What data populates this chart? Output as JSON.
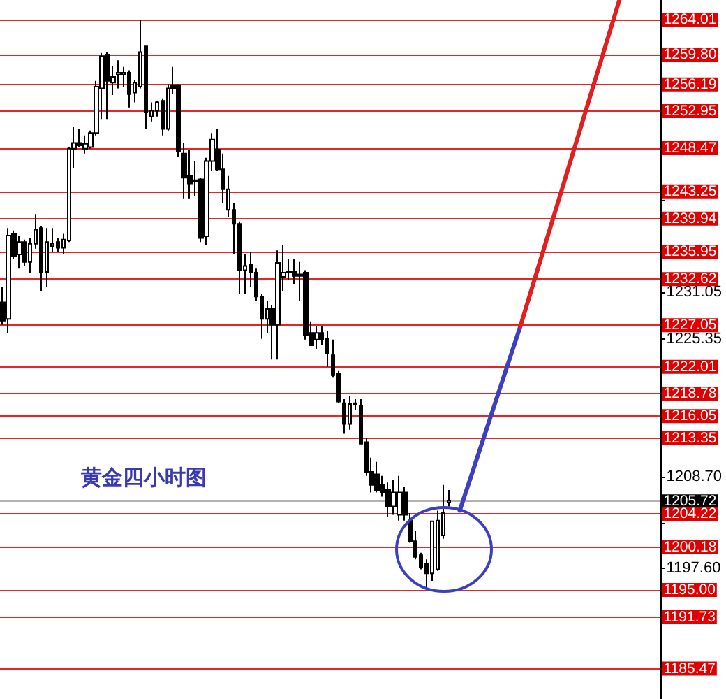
{
  "chart_data": {
    "type": "candlestick",
    "categories": [
      null,
      null,
      null,
      null,
      null,
      null,
      null,
      null,
      null,
      null,
      null,
      null,
      null,
      null,
      null,
      null,
      null,
      null,
      null,
      null,
      null,
      null,
      null,
      null,
      null,
      null,
      null,
      null,
      null,
      null,
      null,
      null,
      null,
      null,
      null,
      null,
      null,
      null,
      null,
      null,
      null,
      null,
      null,
      null,
      null,
      null,
      null,
      null,
      null,
      null,
      null,
      null,
      null,
      null,
      null,
      null,
      null,
      null,
      null,
      null,
      null,
      null,
      null,
      null,
      null,
      null,
      null,
      null,
      null,
      null,
      null,
      null,
      null,
      null,
      null,
      null,
      null,
      null,
      null,
      null,
      null,
      null,
      null,
      null,
      null,
      null,
      null,
      null,
      null,
      null,
      null,
      null,
      null,
      null,
      null,
      null,
      null,
      null,
      null,
      null,
      null,
      null,
      null,
      null,
      null,
      null,
      null,
      null,
      null,
      null,
      null,
      null,
      null,
      null,
      null,
      null,
      null,
      null,
      null,
      null
    ],
    "series": [
      {
        "color": "#000000",
        "ohlc": [
          [
            1229.8,
            1231.7,
            1227.1,
            1227.6
          ],
          [
            1227.8,
            1238.8,
            1226.1,
            1237.9
          ],
          [
            1238.1,
            1238.5,
            1235.1,
            1235.4
          ],
          [
            1235.6,
            1237.9,
            1233.9,
            1237.1
          ],
          [
            1237.1,
            1237.4,
            1234.2,
            1234.7
          ],
          [
            1234.7,
            1237.6,
            1233.4,
            1236.9
          ],
          [
            1236.9,
            1240.5,
            1236.3,
            1238.6
          ],
          [
            1238.8,
            1239.0,
            1231.2,
            1233.5
          ],
          [
            1233.5,
            1238.8,
            1231.7,
            1237.1
          ],
          [
            1236.6,
            1238.8,
            1235.9,
            1236.9
          ],
          [
            1237.1,
            1237.6,
            1235.9,
            1236.4
          ],
          [
            1236.4,
            1238.1,
            1235.6,
            1237.4
          ],
          [
            1237.3,
            1248.6,
            1237.1,
            1248.4
          ],
          [
            1248.4,
            1251.0,
            1246.1,
            1249.1
          ],
          [
            1249.1,
            1250.8,
            1248.6,
            1248.8
          ],
          [
            1248.4,
            1250.0,
            1247.8,
            1249.0
          ],
          [
            1248.6,
            1250.6,
            1248.4,
            1250.3
          ],
          [
            1250.3,
            1256.6,
            1250.0,
            1255.9
          ],
          [
            1255.7,
            1260.0,
            1252.0,
            1259.6
          ],
          [
            1259.8,
            1260.1,
            1252.0,
            1256.6
          ],
          [
            1256.4,
            1258.4,
            1254.9,
            1257.1
          ],
          [
            1257.4,
            1259.1,
            1255.7,
            1257.6
          ],
          [
            1257.4,
            1258.3,
            1255.9,
            1257.6
          ],
          [
            1257.6,
            1257.9,
            1253.4,
            1255.0
          ],
          [
            1255.2,
            1256.7,
            1254.0,
            1256.4
          ],
          [
            1255.9,
            1264.0,
            1255.7,
            1260.1
          ],
          [
            1260.8,
            1260.8,
            1250.8,
            1252.8
          ],
          [
            1252.3,
            1254.0,
            1251.7,
            1253.0
          ],
          [
            1253.0,
            1254.2,
            1252.3,
            1254.0
          ],
          [
            1254.2,
            1254.5,
            1250.0,
            1250.8
          ],
          [
            1250.8,
            1256.2,
            1250.6,
            1255.7
          ],
          [
            1256.1,
            1258.3,
            1255.0,
            1255.7
          ],
          [
            1256.1,
            1256.2,
            1247.4,
            1248.1
          ],
          [
            1247.8,
            1249.1,
            1242.4,
            1244.9
          ],
          [
            1245.1,
            1248.3,
            1242.4,
            1244.2
          ],
          [
            1244.6,
            1246.9,
            1242.7,
            1244.4
          ],
          [
            1244.7,
            1244.9,
            1237.1,
            1237.6
          ],
          [
            1237.8,
            1247.3,
            1236.8,
            1246.9
          ],
          [
            1246.9,
            1250.3,
            1245.7,
            1249.5
          ],
          [
            1248.3,
            1250.8,
            1245.7,
            1245.9
          ],
          [
            1245.9,
            1247.8,
            1241.8,
            1243.5
          ],
          [
            1241.0,
            1245.1,
            1240.1,
            1243.5
          ],
          [
            1241.0,
            1241.8,
            1235.6,
            1239.3
          ],
          [
            1239.3,
            1239.6,
            1230.8,
            1233.7
          ],
          [
            1233.7,
            1235.6,
            1230.8,
            1234.2
          ],
          [
            1234.4,
            1235.9,
            1231.7,
            1233.4
          ],
          [
            1233.4,
            1233.9,
            1230.0,
            1230.5
          ],
          [
            1230.5,
            1230.8,
            1225.4,
            1227.8
          ],
          [
            1227.8,
            1230.0,
            1226.1,
            1229.0
          ],
          [
            1229.0,
            1229.5,
            1222.9,
            1227.1
          ],
          [
            1227.1,
            1236.1,
            1222.9,
            1234.6
          ],
          [
            1232.9,
            1236.8,
            1231.2,
            1233.4
          ],
          [
            1233.4,
            1235.1,
            1232.5,
            1233.5
          ],
          [
            1233.5,
            1235.1,
            1232.0,
            1233.0
          ],
          [
            1233.2,
            1234.7,
            1230.0,
            1233.0
          ],
          [
            1233.4,
            1233.7,
            1225.3,
            1225.8
          ],
          [
            1226.1,
            1227.5,
            1224.6,
            1224.6
          ],
          [
            1225.3,
            1226.9,
            1224.1,
            1226.1
          ],
          [
            1226.1,
            1226.9,
            1224.6,
            1225.3
          ],
          [
            1225.4,
            1226.3,
            1222.0,
            1223.6
          ],
          [
            1223.4,
            1225.3,
            1220.7,
            1221.0
          ],
          [
            1221.2,
            1221.5,
            1217.6,
            1217.8
          ],
          [
            1217.6,
            1218.1,
            1213.9,
            1215.1
          ],
          [
            1215.1,
            1218.5,
            1214.4,
            1217.5
          ],
          [
            1217.5,
            1218.1,
            1216.8,
            1217.6
          ],
          [
            1217.3,
            1218.1,
            1212.7,
            1212.7
          ],
          [
            1212.9,
            1213.4,
            1208.8,
            1209.2
          ],
          [
            1209.3,
            1211.0,
            1206.8,
            1207.7
          ],
          [
            1209.0,
            1210.5,
            1206.8,
            1207.1
          ],
          [
            1207.7,
            1208.8,
            1206.3,
            1206.8
          ],
          [
            1207.1,
            1208.0,
            1203.8,
            1205.1
          ],
          [
            1205.1,
            1208.3,
            1204.1,
            1206.8
          ],
          [
            1204.1,
            1208.8,
            1203.4,
            1206.8
          ],
          [
            1206.8,
            1207.5,
            1203.4,
            1204.1
          ],
          [
            1203.4,
            1204.3,
            1200.7,
            1200.9
          ],
          [
            1200.9,
            1202.1,
            1198.7,
            1199.0
          ],
          [
            1199.2,
            1199.5,
            1197.5,
            1197.7
          ],
          [
            1198.2,
            1198.7,
            1195.3,
            1197.0
          ],
          [
            1197.0,
            1203.4,
            1196.1,
            1203.3
          ],
          [
            1197.5,
            1204.6,
            1197.3,
            1203.4
          ],
          [
            1201.6,
            1207.7,
            1201.2,
            1204.3
          ],
          [
            1205.6,
            1207.1,
            1205.1,
            1205.8
          ],
          null,
          null,
          null,
          null,
          null,
          null,
          null,
          null,
          null,
          null,
          null,
          null,
          null,
          null,
          null,
          null,
          null,
          null,
          null,
          null,
          null,
          null,
          null,
          null,
          null,
          null,
          null,
          null,
          null,
          null,
          null,
          null,
          null,
          null,
          null,
          null,
          null,
          null
        ]
      },
      {
        "type": "line",
        "color": "#3c40c0",
        "values": [
          null,
          null,
          null,
          null,
          null,
          null,
          null,
          null,
          null,
          null,
          null,
          null,
          null,
          null,
          null,
          null,
          null,
          null,
          null,
          null,
          null,
          null,
          null,
          null,
          null,
          null,
          null,
          null,
          null,
          null,
          null,
          null,
          null,
          null,
          null,
          null,
          null,
          null,
          null,
          null,
          null,
          null,
          null,
          null,
          null,
          null,
          null,
          null,
          null,
          null,
          null,
          null,
          null,
          null,
          null,
          null,
          null,
          null,
          null,
          null,
          null,
          null,
          null,
          null,
          null,
          null,
          null,
          null,
          null,
          null,
          null,
          null,
          null,
          null,
          null,
          null,
          null,
          null,
          null,
          null,
          null,
          null,
          null,
          1204.6,
          null,
          null,
          null,
          null,
          null,
          null,
          null,
          null,
          null,
          null,
          1226.9,
          null,
          null,
          null,
          null,
          null,
          null,
          null,
          null,
          null,
          null,
          null,
          null,
          null,
          null,
          null,
          null,
          null,
          null,
          null,
          null,
          null,
          null,
          null,
          null,
          null
        ]
      },
      {
        "type": "line",
        "color": "#e02020",
        "values": [
          null,
          null,
          null,
          null,
          null,
          null,
          null,
          null,
          null,
          null,
          null,
          null,
          null,
          null,
          null,
          null,
          null,
          null,
          null,
          null,
          null,
          null,
          null,
          null,
          null,
          null,
          null,
          null,
          null,
          null,
          null,
          null,
          null,
          null,
          null,
          null,
          null,
          null,
          null,
          null,
          null,
          null,
          null,
          null,
          null,
          null,
          null,
          null,
          null,
          null,
          null,
          null,
          null,
          null,
          null,
          null,
          null,
          null,
          null,
          null,
          null,
          null,
          null,
          null,
          null,
          null,
          null,
          null,
          null,
          null,
          null,
          null,
          null,
          null,
          null,
          null,
          null,
          null,
          null,
          null,
          null,
          null,
          null,
          null,
          null,
          null,
          null,
          null,
          null,
          null,
          null,
          null,
          null,
          null,
          1226.9,
          null,
          null,
          null,
          null,
          null,
          null,
          null,
          null,
          null,
          null,
          null,
          null,
          null,
          null,
          null,
          null,
          null,
          1266.4,
          null,
          null,
          null,
          null,
          null,
          null,
          null
        ]
      }
    ],
    "ylim": [
      1181.8,
      1266.4
    ],
    "yticks": [
      {
        "value": 1242.15,
        "label": null
      },
      1231.05,
      1225.35,
      {
        "value": 1208.7,
        "label": "1208.70"
      },
      {
        "value": 1203.15,
        "label": null
      },
      {
        "value": 1197.6,
        "label": "1197.60"
      }
    ],
    "tick_labels": "y",
    "grid": false,
    "ref_lines": [
      {
        "axis": "y",
        "value": 1264.01,
        "label": "1264.01",
        "color": "#e00000"
      },
      {
        "axis": "y",
        "value": 1259.8,
        "label": "1259.80",
        "color": "#e00000"
      },
      {
        "axis": "y",
        "value": 1256.19,
        "label": "1256.19",
        "color": "#e00000"
      },
      {
        "axis": "y",
        "value": 1252.95,
        "label": "1252.95",
        "color": "#e00000"
      },
      {
        "axis": "y",
        "value": 1248.47,
        "label": "1248.47",
        "color": "#e00000"
      },
      {
        "axis": "y",
        "value": 1243.25,
        "label": "1243.25",
        "color": "#e00000"
      },
      {
        "axis": "y",
        "value": 1239.94,
        "label": "1239.94",
        "color": "#e00000"
      },
      {
        "axis": "y",
        "value": 1235.95,
        "label": "1235.95",
        "color": "#e00000"
      },
      {
        "axis": "y",
        "value": 1232.62,
        "label": "1232.62",
        "color": "#e00000"
      },
      {
        "axis": "y",
        "value": 1227.05,
        "label": "1227.05",
        "color": "#e00000"
      },
      {
        "axis": "y",
        "value": 1222.01,
        "label": "1222.01",
        "color": "#e00000"
      },
      {
        "axis": "y",
        "value": 1218.78,
        "label": "1218.78",
        "color": "#e00000"
      },
      {
        "axis": "y",
        "value": 1216.05,
        "label": "1216.05",
        "color": "#e00000"
      },
      {
        "axis": "y",
        "value": 1213.35,
        "label": "1213.35",
        "color": "#e00000"
      },
      {
        "axis": "y",
        "value": 1205.72,
        "label": "1205.72",
        "color": "#000000"
      },
      {
        "axis": "y",
        "value": 1204.22,
        "label": "1204.22",
        "color": "#e00000"
      },
      {
        "axis": "y",
        "value": 1200.18,
        "label": "1200.18",
        "color": "#e00000"
      },
      {
        "axis": "y",
        "value": 1195.0,
        "label": "1195.00",
        "color": "#e00000"
      },
      {
        "axis": "y",
        "value": 1191.73,
        "label": "1191.73",
        "color": "#e00000"
      },
      {
        "axis": "y",
        "value": 1185.47,
        "label": "1185.47",
        "color": "#e00000"
      }
    ],
    "annotations": [
      "黄金四小时图"
    ]
  }
}
